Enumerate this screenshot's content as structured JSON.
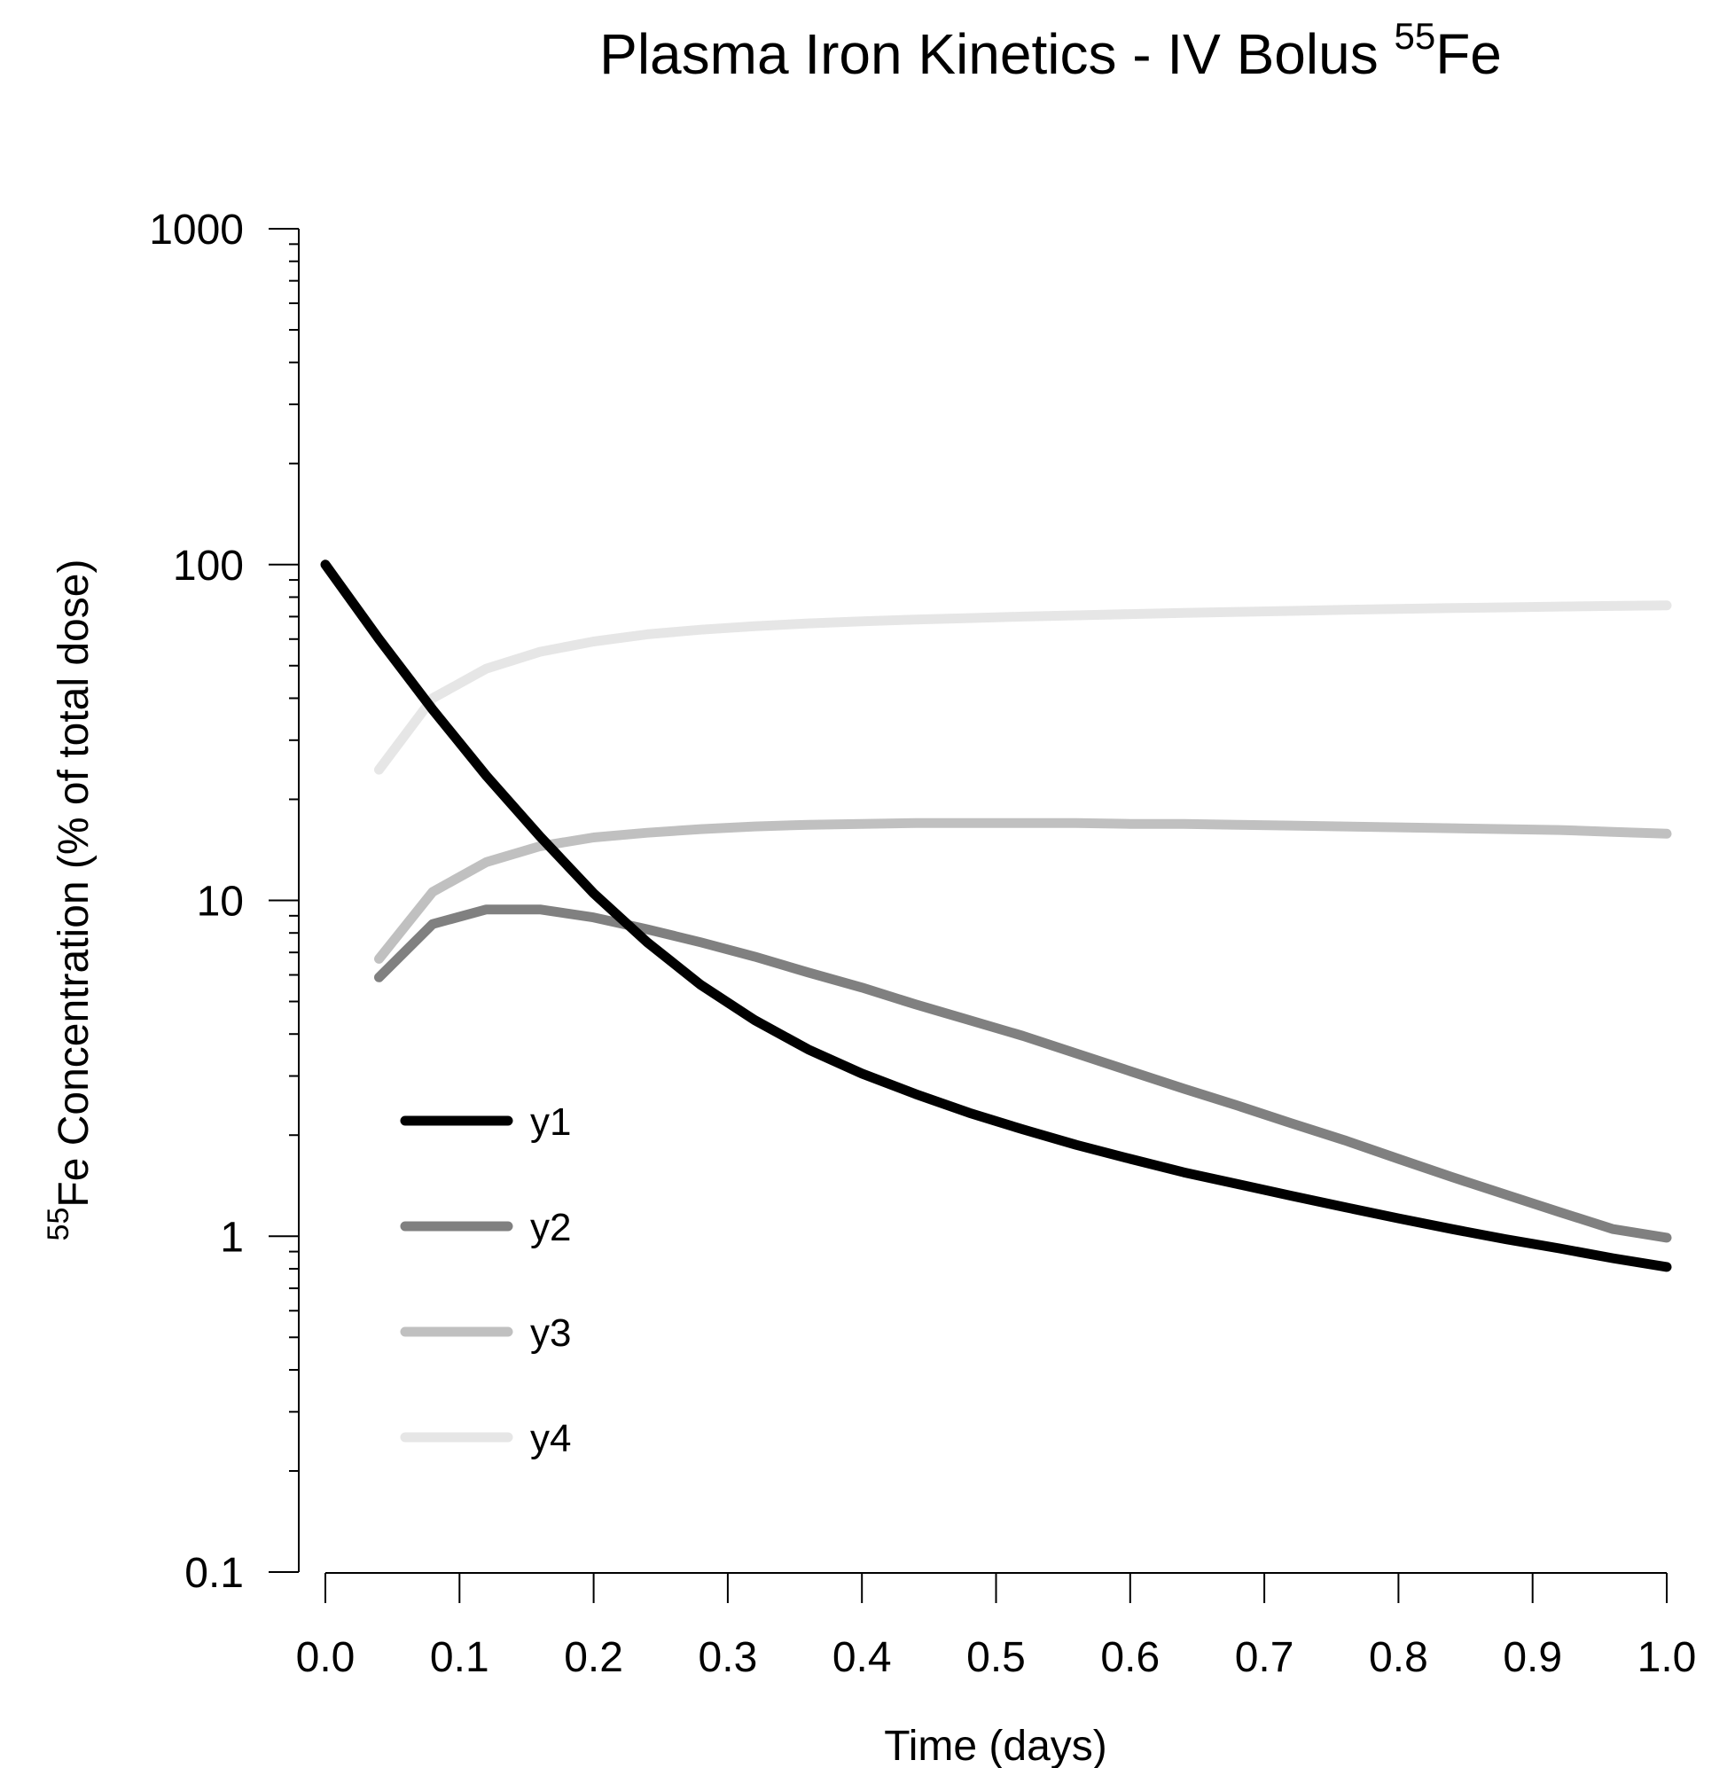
{
  "chart_data": {
    "type": "line",
    "title": "Plasma Iron Kinetics - IV Bolus ",
    "title_superscript": "55",
    "title_suffix": "Fe",
    "xlabel": "Time (days)",
    "ylabel_superscript": "55",
    "ylabel": "Fe Concentration (% of total dose)",
    "xlim": [
      0,
      1
    ],
    "ylim": [
      0.1,
      1000
    ],
    "yscale": "log",
    "grid": false,
    "legend_position": "lower-left",
    "x_ticks": [
      0.0,
      0.1,
      0.2,
      0.3,
      0.4,
      0.5,
      0.6,
      0.7,
      0.8,
      0.9,
      1.0
    ],
    "x_tick_labels": [
      "0.0",
      "0.1",
      "0.2",
      "0.3",
      "0.4",
      "0.5",
      "0.6",
      "0.7",
      "0.8",
      "0.9",
      "1.0"
    ],
    "y_ticks": [
      0.1,
      1,
      10,
      100,
      1000
    ],
    "y_tick_labels": [
      "0.1",
      "1",
      "10",
      "100",
      "1000"
    ],
    "series": [
      {
        "name": "y1",
        "color": "#000000",
        "x": [
          0.0,
          0.04,
          0.08,
          0.12,
          0.16,
          0.2,
          0.24,
          0.28,
          0.32,
          0.36,
          0.4,
          0.44,
          0.48,
          0.52,
          0.56,
          0.6,
          0.64,
          0.68,
          0.72,
          0.76,
          0.8,
          0.84,
          0.88,
          0.92,
          0.96,
          1.0
        ],
        "y": [
          100,
          60,
          37,
          23.5,
          15.5,
          10.5,
          7.5,
          5.6,
          4.4,
          3.6,
          3.05,
          2.65,
          2.33,
          2.08,
          1.87,
          1.7,
          1.55,
          1.43,
          1.32,
          1.22,
          1.13,
          1.05,
          0.98,
          0.92,
          0.86,
          0.81
        ]
      },
      {
        "name": "y2",
        "color": "#808080",
        "x": [
          0.04,
          0.08,
          0.12,
          0.16,
          0.2,
          0.24,
          0.28,
          0.32,
          0.36,
          0.4,
          0.44,
          0.48,
          0.52,
          0.56,
          0.6,
          0.64,
          0.68,
          0.72,
          0.76,
          0.8,
          0.84,
          0.88,
          0.92,
          0.96,
          1.0
        ],
        "y": [
          5.9,
          8.5,
          9.4,
          9.4,
          8.9,
          8.2,
          7.5,
          6.8,
          6.1,
          5.5,
          4.9,
          4.4,
          3.95,
          3.5,
          3.1,
          2.75,
          2.45,
          2.17,
          1.93,
          1.7,
          1.5,
          1.33,
          1.18,
          1.05,
          0.99
        ]
      },
      {
        "name": "y3",
        "color": "#c0c0c0",
        "x": [
          0.04,
          0.08,
          0.12,
          0.16,
          0.2,
          0.24,
          0.28,
          0.32,
          0.36,
          0.4,
          0.44,
          0.48,
          0.52,
          0.56,
          0.6,
          0.64,
          0.68,
          0.72,
          0.76,
          0.8,
          0.84,
          0.88,
          0.92,
          0.96,
          1.0
        ],
        "y": [
          6.7,
          10.6,
          13.0,
          14.5,
          15.4,
          15.9,
          16.3,
          16.6,
          16.8,
          16.9,
          17.0,
          17.0,
          17.0,
          17.0,
          16.9,
          16.9,
          16.8,
          16.7,
          16.6,
          16.5,
          16.4,
          16.3,
          16.2,
          16.0,
          15.8
        ]
      },
      {
        "name": "y4",
        "color": "#e6e6e6",
        "x": [
          0.04,
          0.08,
          0.12,
          0.16,
          0.2,
          0.24,
          0.28,
          0.32,
          0.36,
          0.4,
          0.44,
          0.48,
          0.52,
          0.56,
          0.6,
          0.64,
          0.68,
          0.72,
          0.76,
          0.8,
          0.84,
          0.88,
          0.92,
          0.96,
          1.0
        ],
        "y": [
          24.5,
          40,
          49,
          55,
          59,
          62,
          64,
          65.5,
          66.8,
          67.8,
          68.6,
          69.3,
          70,
          70.6,
          71.2,
          71.8,
          72.3,
          72.8,
          73.3,
          73.8,
          74.2,
          74.6,
          75,
          75.3,
          75.6
        ]
      }
    ]
  }
}
